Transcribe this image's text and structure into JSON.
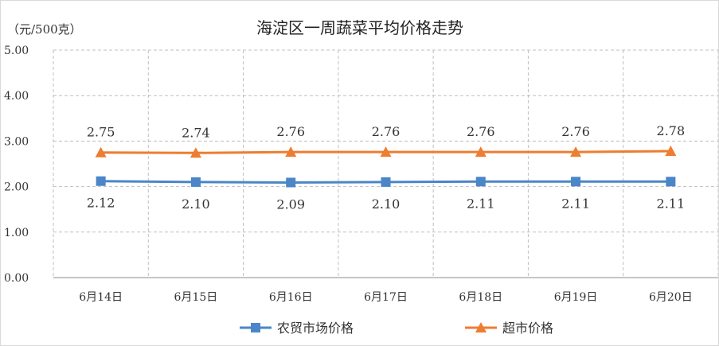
{
  "chart_data": {
    "type": "line",
    "title": "海淀区一周蔬菜平均价格走势",
    "unit_label": "（元/500克）",
    "categories": [
      "6月14日",
      "6月15日",
      "6月16日",
      "6月17日",
      "6月18日",
      "6月19日",
      "6月20日"
    ],
    "ylim": [
      0,
      5
    ],
    "yticks": [
      "0.00",
      "1.00",
      "2.00",
      "3.00",
      "4.00",
      "5.00"
    ],
    "grid": true,
    "legend_position": "bottom",
    "series": [
      {
        "name": "农贸市场价格",
        "color": "#4a86c8",
        "marker": "square",
        "label_position": "below",
        "values": [
          2.12,
          2.1,
          2.09,
          2.1,
          2.11,
          2.11,
          2.11
        ],
        "labels": [
          "2.12",
          "2.10",
          "2.09",
          "2.10",
          "2.11",
          "2.11",
          "2.11"
        ]
      },
      {
        "name": "超市价格",
        "color": "#ed7d31",
        "marker": "triangle",
        "label_position": "above",
        "values": [
          2.75,
          2.74,
          2.76,
          2.76,
          2.76,
          2.76,
          2.78
        ],
        "labels": [
          "2.75",
          "2.74",
          "2.76",
          "2.76",
          "2.76",
          "2.76",
          "2.78"
        ]
      }
    ]
  }
}
